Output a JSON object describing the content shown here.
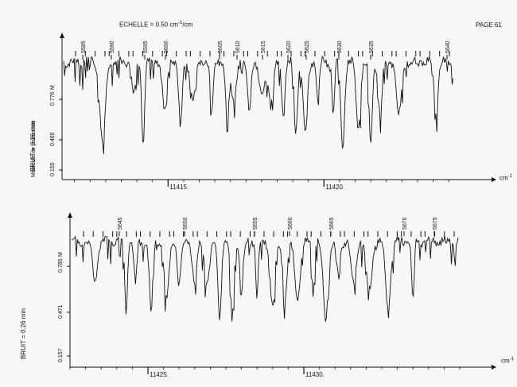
{
  "header": {
    "scale_label": "ECHELLE = 0.50 cm",
    "scale_exp": "-1",
    "scale_unit": "/cm",
    "page_number": "PAGE 61"
  },
  "side_labels": {
    "molecule": "Molécule de potassium",
    "noise": "BRUIT = 0.26 mm"
  },
  "axis_unit": "cm",
  "chart_data": [
    {
      "type": "line",
      "title": "",
      "xlabel": "cm-1",
      "ylabel": "BRUIT = 0.26 mm",
      "xlim": [
        11411.6,
        11424.2
      ],
      "x_ticks": [
        11415,
        11420
      ],
      "x_tick_labels": [
        "11415.",
        "11420."
      ],
      "y_tick_labels": [
        "0.155",
        "0.465",
        "0.776"
      ],
      "y_axis_mark": "M",
      "line_numbers": [
        "5585",
        "5590",
        "5595",
        "5600",
        "5605",
        "5610",
        "5615",
        "5620",
        "5625",
        "5630",
        "5635",
        "5640"
      ],
      "absorption_lines_x": [
        11412.9,
        11413.9,
        11414.2,
        11414.9,
        11415.4,
        11415.8,
        11416.4,
        11416.9,
        11417.1,
        11417.6,
        11418.0,
        11418.3,
        11418.7,
        11419.1,
        11419.4,
        11419.8,
        11420.3,
        11420.6,
        11421.1,
        11421.5,
        11421.8,
        11422.4,
        11423.6
      ],
      "grid": false
    },
    {
      "type": "line",
      "title": "",
      "xlabel": "cm-1",
      "ylabel": "BRUIT = 0.26 mm",
      "xlim": [
        11422.5,
        11435.0
      ],
      "x_ticks": [
        11425,
        11430
      ],
      "x_tick_labels": [
        "11425.",
        "11430."
      ],
      "y_tick_labels": [
        "0.157",
        "0.471",
        "0.785"
      ],
      "y_axis_mark": "M",
      "line_numbers": [
        "5645",
        "5650",
        "5655",
        "5660",
        "5665",
        "5670",
        "5675"
      ],
      "absorption_lines_x": [
        11423.3,
        11424.3,
        11424.6,
        11425.1,
        11425.6,
        11426.0,
        11426.5,
        11426.9,
        11427.3,
        11427.7,
        11428.0,
        11428.5,
        11429.0,
        11429.4,
        11429.8,
        11430.3,
        11430.7,
        11431.1,
        11431.6,
        11432.1,
        11432.7,
        11433.5
      ],
      "grid": false
    }
  ]
}
